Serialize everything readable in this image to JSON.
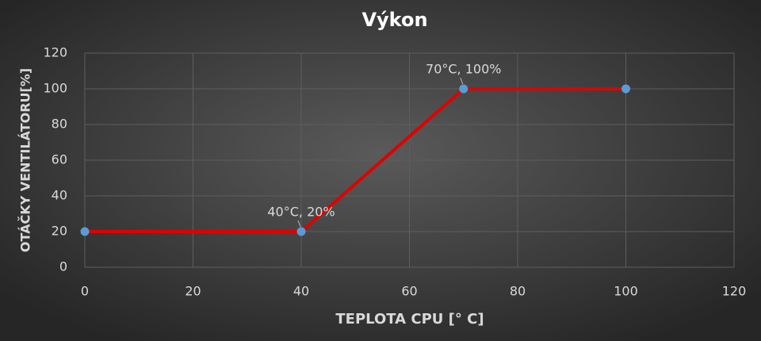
{
  "chart_data": {
    "type": "line",
    "title": "Výkon",
    "x_label": "TEPLOTA CPU [° C]",
    "y_label": "OTÁČKY VENTILÁTORU[%]",
    "series": [
      {
        "name": "Výkon",
        "color": "#e00000",
        "marker_color": "#5b9bd5",
        "x": [
          0,
          40,
          70,
          100
        ],
        "values": [
          20,
          20,
          100,
          100
        ]
      }
    ],
    "annotations": [
      {
        "text": "40°C, 20%",
        "x": 40,
        "y": 20
      },
      {
        "text": "70°C, 100%",
        "x": 70,
        "y": 100
      }
    ],
    "xlim": [
      0,
      120
    ],
    "xticks": [
      0,
      20,
      40,
      60,
      80,
      100,
      120
    ],
    "ylim": [
      0,
      120
    ],
    "yticks": [
      0,
      20,
      40,
      60,
      80,
      100,
      120
    ],
    "grid": true
  }
}
